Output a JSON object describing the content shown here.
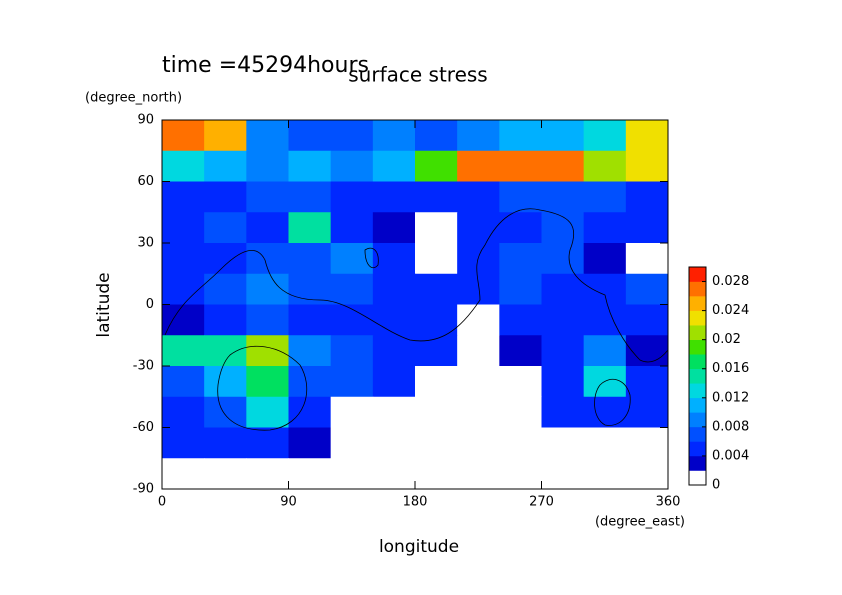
{
  "chart_data": {
    "type": "contour",
    "title": "surface stress",
    "subtitle": "time =45294hours",
    "y_unit": "(degree_north)",
    "y_label": "latitude",
    "x_label": "longitude",
    "x_unit": "(degree_east)",
    "xlim": [
      0,
      360
    ],
    "ylim": [
      -90,
      90
    ],
    "xticks": [
      0,
      90,
      180,
      270,
      360
    ],
    "yticks": [
      -90,
      -60,
      -30,
      0,
      30,
      60,
      90
    ],
    "lon": [
      15,
      45,
      75,
      105,
      135,
      165,
      195,
      225,
      255,
      285,
      315,
      345
    ],
    "lat": [
      82.5,
      67.5,
      52.5,
      37.5,
      22.5,
      7.5,
      -7.5,
      -22.5,
      -37.5,
      -52.5,
      -67.5,
      -82.5
    ],
    "values": [
      [
        0.026,
        0.024,
        0.008,
        0.006,
        0.006,
        0.008,
        0.006,
        0.008,
        0.01,
        0.01,
        0.012,
        0.022
      ],
      [
        0.012,
        0.01,
        0.008,
        0.01,
        0.008,
        0.01,
        0.018,
        0.026,
        0.026,
        0.026,
        0.02,
        0.022
      ],
      [
        0.004,
        0.004,
        0.006,
        0.006,
        0.004,
        0.004,
        0.004,
        0.004,
        0.006,
        0.006,
        0.006,
        0.004
      ],
      [
        0.004,
        0.006,
        0.004,
        0.014,
        0.004,
        0.002,
        0.001,
        0.004,
        0.004,
        0.006,
        0.004,
        0.004
      ],
      [
        0.004,
        0.004,
        0.006,
        0.006,
        0.008,
        0.004,
        0.001,
        0.004,
        0.006,
        0.006,
        0.002,
        0.001
      ],
      [
        0.004,
        0.006,
        0.008,
        0.006,
        0.006,
        0.004,
        0.004,
        0.004,
        0.006,
        0.004,
        0.004,
        0.006
      ],
      [
        0.002,
        0.004,
        0.006,
        0.004,
        0.004,
        0.004,
        0.004,
        0.001,
        0.004,
        0.004,
        0.004,
        0.004
      ],
      [
        0.014,
        0.014,
        0.02,
        0.008,
        0.006,
        0.004,
        0.004,
        0.001,
        0.002,
        0.004,
        0.008,
        0.002
      ],
      [
        0.006,
        0.01,
        0.016,
        0.006,
        0.006,
        0.004,
        0.001,
        0.001,
        0.001,
        0.004,
        0.012,
        0.004
      ],
      [
        0.004,
        0.006,
        0.012,
        0.004,
        0.001,
        0.001,
        0.001,
        0.001,
        0.001,
        0.004,
        0.004,
        0.004
      ],
      [
        0.004,
        0.004,
        0.004,
        0.002,
        0.001,
        0.001,
        0.001,
        0.001,
        0.001,
        0.001,
        0.001,
        0.001
      ],
      [
        0,
        0,
        0,
        0,
        0,
        0,
        0,
        0,
        0,
        0,
        0,
        0
      ]
    ],
    "levels": [
      0,
      0.002,
      0.004,
      0.006,
      0.008,
      0.01,
      0.012,
      0.014,
      0.016,
      0.018,
      0.02,
      0.022,
      0.024,
      0.026,
      0.028
    ],
    "colors": [
      "#ffffff",
      "#0000c8",
      "#0028ff",
      "#0050ff",
      "#0080ff",
      "#00b0ff",
      "#00d8e0",
      "#00e0a0",
      "#00e060",
      "#40e000",
      "#a0e000",
      "#f0e000",
      "#ffb000",
      "#ff7000",
      "#ff2000"
    ],
    "colorbar_lim": [
      0,
      0.03
    ],
    "colorbar_ticks": [
      0,
      0.004,
      0.008,
      0.012,
      0.016,
      0.02,
      0.024,
      0.028
    ]
  }
}
